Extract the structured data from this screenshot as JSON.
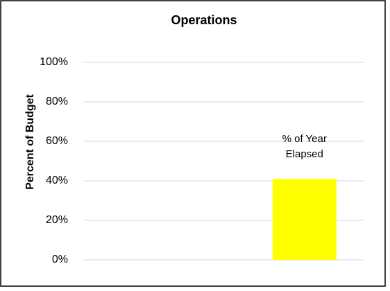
{
  "chart_data": {
    "type": "bar",
    "title": "Operations",
    "y_label": "Percent of Budget",
    "categories": [
      null,
      null
    ],
    "values": [
      null,
      41
    ],
    "color": "#ffff00",
    "annotation": "% of  Year Elapsed",
    "ylim": [
      0,
      100
    ],
    "yticks": [
      {
        "value": 0,
        "label": "0%"
      },
      {
        "value": 20,
        "label": "20%"
      },
      {
        "value": 40,
        "label": "40%"
      },
      {
        "value": 60,
        "label": "60%"
      },
      {
        "value": 80,
        "label": "80%"
      },
      {
        "value": 100,
        "label": "100%"
      }
    ],
    "grid": true
  }
}
